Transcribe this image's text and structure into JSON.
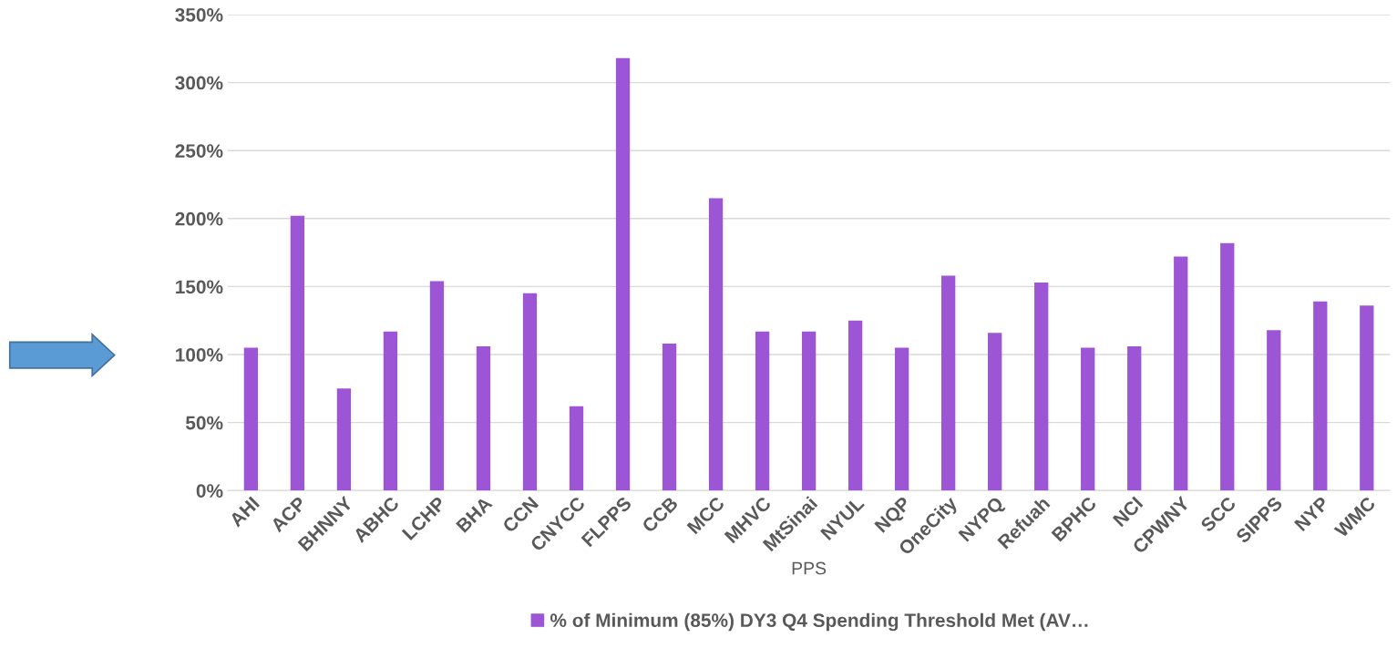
{
  "chart_data": {
    "type": "bar",
    "xlabel": "PPS",
    "categories": [
      "AHI",
      "ACP",
      "BHNNY",
      "ABHC",
      "LCHP",
      "BHA",
      "CCN",
      "CNYCC",
      "FLPPS",
      "CCB",
      "MCC",
      "MHVC",
      "MtSinai",
      "NYUL",
      "NQP",
      "OneCity",
      "NYPQ",
      "Refuah",
      "BPHC",
      "NCI",
      "CPWNY",
      "SCC",
      "SIPPS",
      "NYP",
      "WMC"
    ],
    "series": [
      {
        "name": "% of Minimum (85%) DY3 Q4 Spending Threshold Met (AV…",
        "color": "#9b55d5",
        "values": [
          105,
          202,
          75,
          117,
          154,
          106,
          145,
          62,
          318,
          108,
          215,
          117,
          117,
          125,
          105,
          158,
          116,
          153,
          105,
          106,
          172,
          182,
          118,
          139,
          136
        ]
      }
    ],
    "ylim": [
      0,
      350
    ],
    "yticks": [
      {
        "value": 0,
        "label": "0%"
      },
      {
        "value": 50,
        "label": "50%"
      },
      {
        "value": 100,
        "label": "100%"
      },
      {
        "value": 150,
        "label": "150%"
      },
      {
        "value": 200,
        "label": "200%"
      },
      {
        "value": 250,
        "label": "250%"
      },
      {
        "value": 300,
        "label": "300%"
      },
      {
        "value": 350,
        "label": "350%"
      }
    ],
    "grid": "y",
    "legend": "bottom"
  }
}
